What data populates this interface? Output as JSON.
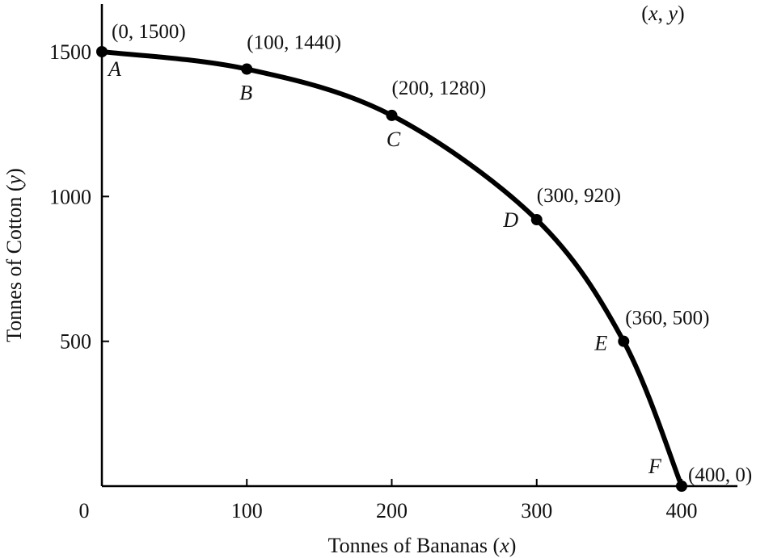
{
  "chart_data": {
    "type": "line",
    "xlabel_parts": [
      "Tonnes of Bananas (",
      "x",
      ")"
    ],
    "ylabel_parts": [
      "Tonnes of Cotton (",
      "y",
      ")"
    ],
    "xlim": [
      0,
      440
    ],
    "ylim": [
      0,
      1650
    ],
    "x_ticks": [
      {
        "value": 0,
        "label": "0"
      },
      {
        "value": 100,
        "label": "100"
      },
      {
        "value": 200,
        "label": "200"
      },
      {
        "value": 300,
        "label": "300"
      },
      {
        "value": 400,
        "label": "400"
      }
    ],
    "y_ticks": [
      {
        "value": 500,
        "label": "500"
      },
      {
        "value": 1000,
        "label": "1000"
      },
      {
        "value": 1500,
        "label": "1500"
      }
    ],
    "coordinate_note_parts": [
      "(",
      "x",
      ", ",
      "y",
      ")"
    ],
    "grid": false,
    "series": [
      {
        "color": "#000000",
        "points": [
          {
            "letter": "A",
            "x": 0,
            "y": 1500,
            "label": "(0, 1500)"
          },
          {
            "letter": "B",
            "x": 100,
            "y": 1440,
            "label": "(100, 1440)"
          },
          {
            "letter": "C",
            "x": 200,
            "y": 1280,
            "label": "(200, 1280)"
          },
          {
            "letter": "D",
            "x": 300,
            "y": 920,
            "label": "(300, 920)"
          },
          {
            "letter": "E",
            "x": 360,
            "y": 500,
            "label": "(360, 500)"
          },
          {
            "letter": "F",
            "x": 400,
            "y": 0,
            "label": "(400, 0)"
          }
        ]
      }
    ]
  }
}
